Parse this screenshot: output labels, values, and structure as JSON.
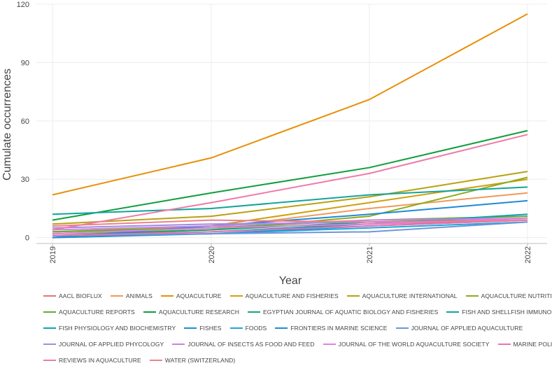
{
  "chart_data": {
    "type": "line",
    "title": "",
    "xlabel": "Year",
    "ylabel": "Cumulate occurrences",
    "x": [
      2019,
      2020,
      2021,
      2022
    ],
    "x_tick_labels": [
      "2019",
      "2020",
      "2021",
      "2022"
    ],
    "ylim": [
      -3,
      120
    ],
    "y_ticks": [
      0,
      30,
      60,
      90,
      120
    ],
    "y_tick_labels": [
      "0",
      "30",
      "60",
      "90",
      "120"
    ],
    "grid": true,
    "legend_position": "bottom",
    "series": [
      {
        "name": "AACL BIOFLUX",
        "color": "#e57373",
        "values": [
          3,
          5,
          7,
          9
        ]
      },
      {
        "name": "ANIMALS",
        "color": "#ee9a5a",
        "values": [
          2,
          5,
          15,
          23
        ]
      },
      {
        "name": "AQUACULTURE",
        "color": "#e8900a",
        "values": [
          22,
          41,
          71,
          115
        ]
      },
      {
        "name": "AQUACULTURE AND FISHERIES",
        "color": "#d1a00e",
        "values": [
          3,
          6,
          18,
          30
        ]
      },
      {
        "name": "AQUACULTURE INTERNATIONAL",
        "color": "#b8a110",
        "values": [
          7,
          11,
          21,
          34
        ]
      },
      {
        "name": "AQUACULTURE NUTRITION",
        "color": "#8cab1c",
        "values": [
          2,
          4,
          11,
          31
        ]
      },
      {
        "name": "AQUACULTURE REPORTS",
        "color": "#5fae39",
        "values": [
          3,
          5,
          9,
          11
        ]
      },
      {
        "name": "AQUACULTURE RESEARCH",
        "color": "#109e3c",
        "values": [
          9,
          23,
          36,
          55
        ]
      },
      {
        "name": "EGYPTIAN JOURNAL OF AQUATIC BIOLOGY AND FISHERIES",
        "color": "#13a873",
        "values": [
          1,
          4,
          8,
          10
        ]
      },
      {
        "name": "FISH AND SHELLFISH IMMUNOLOGY",
        "color": "#12a59a",
        "values": [
          12,
          15,
          22,
          26
        ]
      },
      {
        "name": "FISH PHYSIOLOGY AND BIOCHEMISTRY",
        "color": "#10a2b2",
        "values": [
          1,
          3,
          7,
          12
        ]
      },
      {
        "name": "FISHES",
        "color": "#1794c9",
        "values": [
          0,
          2,
          6,
          9
        ]
      },
      {
        "name": "FOODS",
        "color": "#1ea7d8",
        "values": [
          1,
          2,
          5,
          8
        ]
      },
      {
        "name": "FRONTIERS IN MARINE SCIENCE",
        "color": "#1f8ad6",
        "values": [
          0,
          6,
          12,
          19
        ]
      },
      {
        "name": "JOURNAL OF APPLIED AQUACULTURE",
        "color": "#6f95d8",
        "values": [
          1,
          2,
          3,
          8
        ]
      },
      {
        "name": "JOURNAL OF APPLIED PHYCOLOGY",
        "color": "#9c8fe0",
        "values": [
          5,
          7,
          8,
          9
        ]
      },
      {
        "name": "JOURNAL OF INSECTS AS FOOD AND FEED",
        "color": "#c684e6",
        "values": [
          4,
          6,
          9,
          10
        ]
      },
      {
        "name": "JOURNAL OF THE WORLD AQUACULTURE SOCIETY",
        "color": "#e27fe0",
        "values": [
          2,
          5,
          7,
          10
        ]
      },
      {
        "name": "MARINE POLICY",
        "color": "#ee6fb5",
        "values": [
          1,
          3,
          6,
          9
        ]
      },
      {
        "name": "REVIEWS IN AQUACULTURE",
        "color": "#ef7aa8",
        "values": [
          4,
          18,
          33,
          53
        ]
      },
      {
        "name": "WATER (SWITZERLAND)",
        "color": "#f07f8e",
        "values": [
          6,
          9,
          8,
          9
        ]
      }
    ]
  },
  "legend_rows": [
    [
      0,
      1,
      2,
      3,
      4,
      5
    ],
    [
      6,
      7,
      8,
      9
    ],
    [
      10,
      11,
      12,
      13,
      14
    ],
    [
      15,
      16,
      17,
      18
    ],
    [
      19,
      20
    ]
  ]
}
